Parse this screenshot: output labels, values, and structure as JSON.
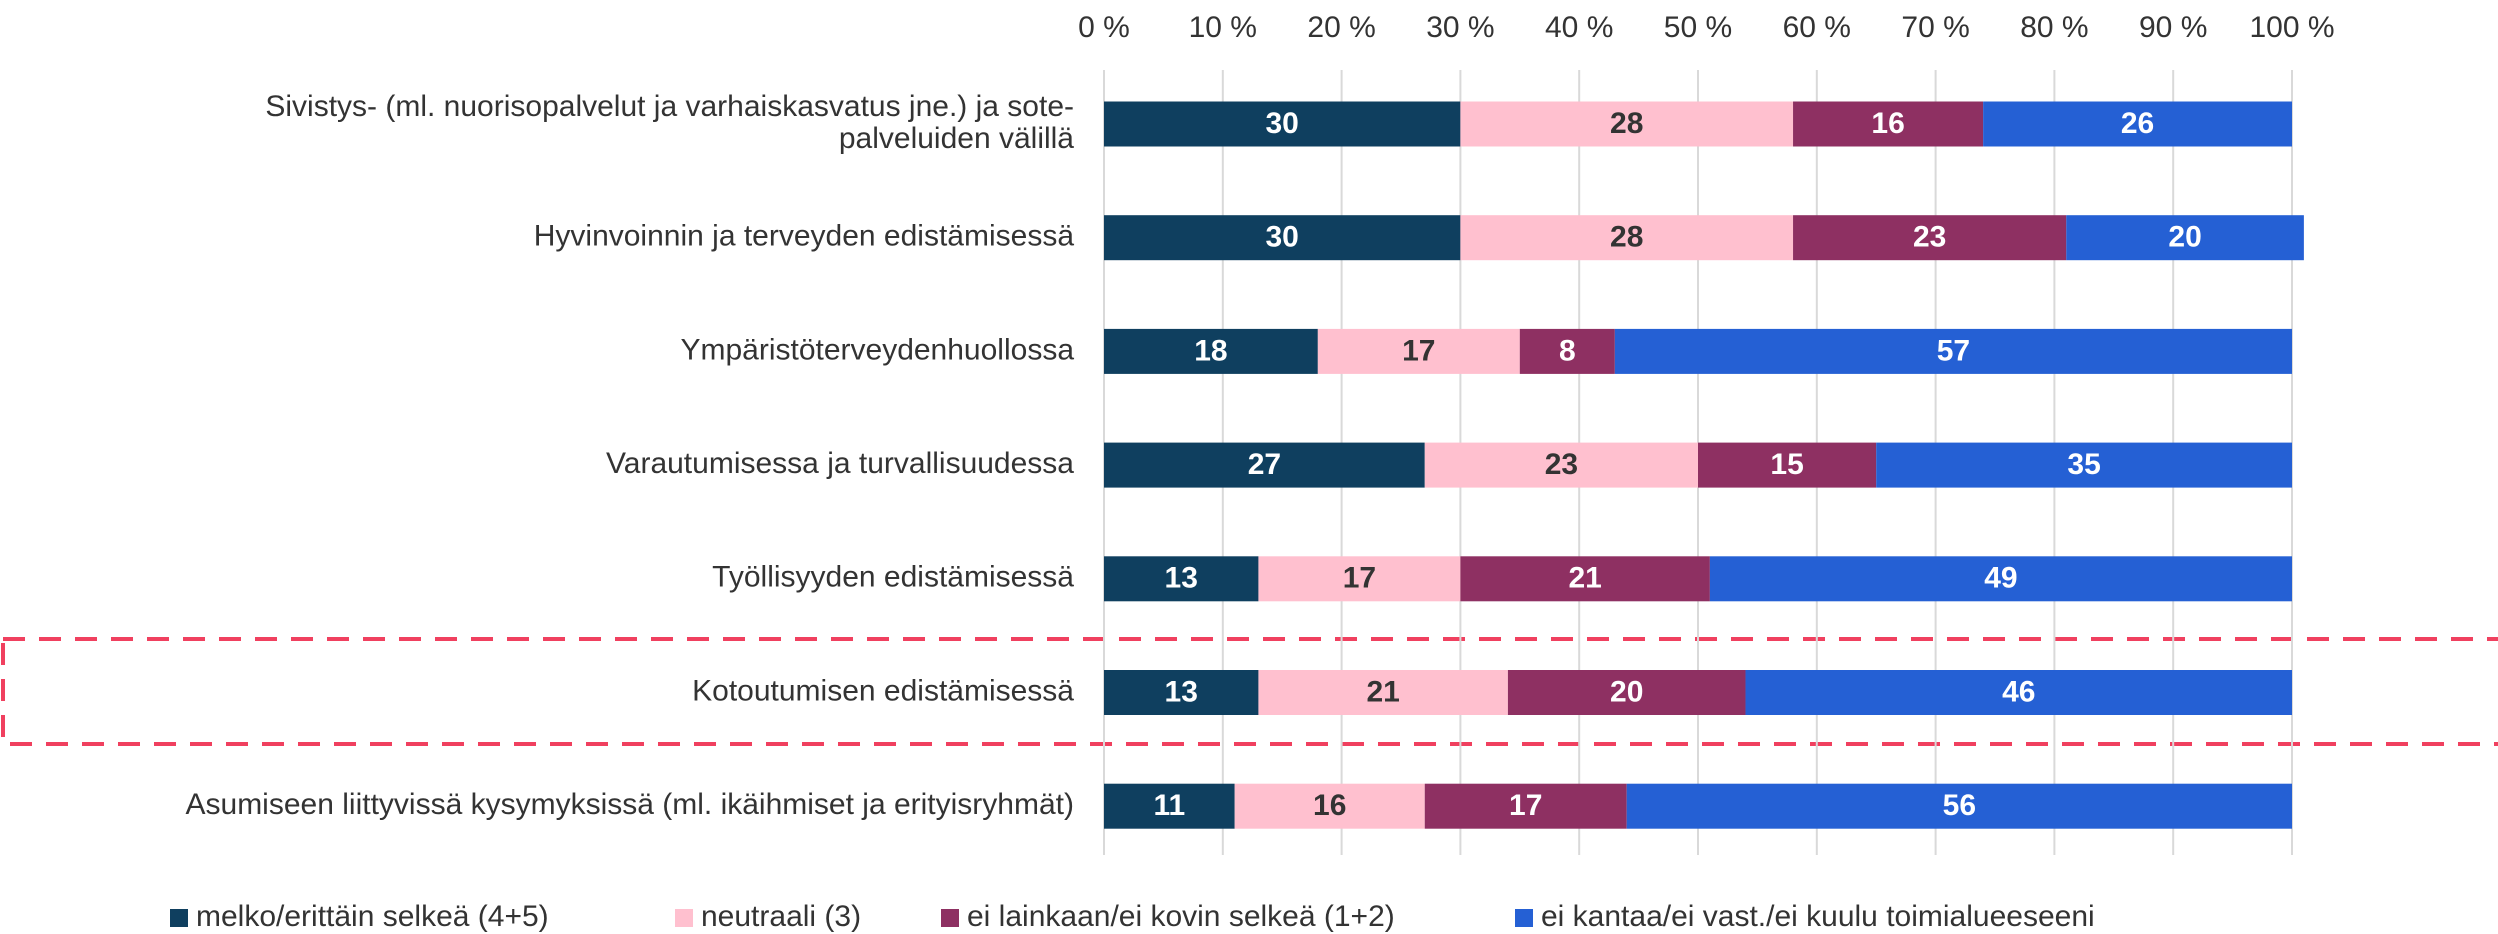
{
  "chart_data": {
    "type": "stacked-barh",
    "categories": [
      "Sivistys- (ml. nuorisopalvelut ja varhaiskasvatus jne.) ja sote-\npalveluiden välillä",
      "Hyvinvoinnin ja terveyden edistämisessä",
      "Ympäristöterveydenhuollossa",
      "Varautumisessa ja turvallisuudessa",
      "Työllisyyden edistämisessä",
      "Kotoutumisen edistämisessä",
      "Asumiseen liittyvissä kysymyksissä (ml. ikäihmiset ja erityisryhmät)"
    ],
    "series": [
      {
        "name": "melko/erittäin selkeä (4+5)",
        "color": "#0f3f5f",
        "label_color": "#ffffff",
        "values": [
          30,
          30,
          18,
          27,
          13,
          13,
          11
        ]
      },
      {
        "name": "neutraali (3)",
        "color": "#ffc0cf",
        "label_color": "#333333",
        "values": [
          28,
          28,
          17,
          23,
          17,
          21,
          16
        ]
      },
      {
        "name": "ei lainkaan/ei kovin selkeä (1+2)",
        "color": "#8e3062",
        "label_color": "#ffffff",
        "values": [
          16,
          23,
          8,
          15,
          21,
          20,
          17
        ]
      },
      {
        "name": "ei kantaa/ei vast./ei kuulu toimialueeseeni",
        "color": "#2560d4",
        "label_color": "#ffffff",
        "values": [
          26,
          20,
          57,
          35,
          49,
          46,
          56
        ]
      }
    ],
    "xlim": [
      0,
      100
    ],
    "xticks": [
      {
        "value": 0,
        "label": "0 %"
      },
      {
        "value": 10,
        "label": "10 %"
      },
      {
        "value": 20,
        "label": "20 %"
      },
      {
        "value": 30,
        "label": "30 %"
      },
      {
        "value": 40,
        "label": "40 %"
      },
      {
        "value": 50,
        "label": "50 %"
      },
      {
        "value": 60,
        "label": "60 %"
      },
      {
        "value": 70,
        "label": "70 %"
      },
      {
        "value": 80,
        "label": "80 %"
      },
      {
        "value": 90,
        "label": "90 %"
      },
      {
        "value": 100,
        "label": "100 %"
      }
    ],
    "grid": true,
    "legend": "bottom"
  }
}
